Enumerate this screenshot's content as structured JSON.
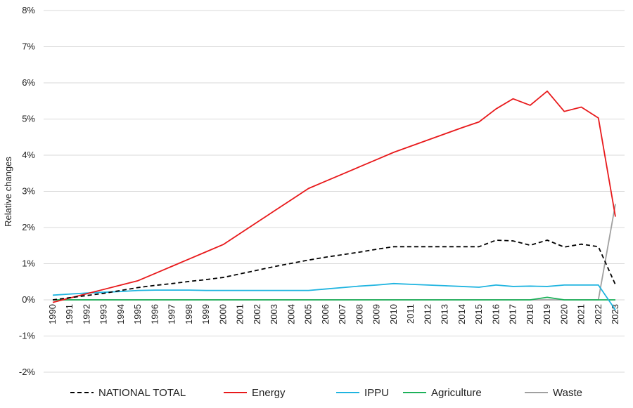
{
  "chart_data": {
    "type": "line",
    "title": "",
    "xlabel": "",
    "ylabel": "Relative changes",
    "ylim": [
      -2,
      8
    ],
    "ytick_values": [
      -2,
      -1,
      0,
      1,
      2,
      3,
      4,
      5,
      6,
      7,
      8
    ],
    "ytick_labels": [
      "-2%",
      "-1%",
      "0%",
      "1%",
      "2%",
      "3%",
      "4%",
      "5%",
      "6%",
      "7%",
      "8%"
    ],
    "grid": "horizontal",
    "legend_position": "bottom",
    "x": [
      "1990",
      "1991",
      "1992",
      "1993",
      "1994",
      "1995",
      "1996",
      "1997",
      "1998",
      "1999",
      "2000",
      "2001",
      "2002",
      "2003",
      "2004",
      "2005",
      "2006",
      "2007",
      "2008",
      "2009",
      "2010",
      "2011",
      "2012",
      "2013",
      "2014",
      "2015",
      "2016",
      "2017",
      "2018",
      "2019",
      "2020",
      "2021",
      "2022",
      "2023"
    ],
    "series": [
      {
        "name": "NATIONAL TOTAL",
        "color": "#000000",
        "dash": "dashed",
        "values": [
          0.0,
          0.06,
          0.12,
          0.18,
          0.26,
          0.34,
          0.4,
          0.45,
          0.51,
          0.56,
          0.62,
          0.72,
          0.82,
          0.92,
          1.01,
          1.1,
          1.18,
          1.25,
          1.32,
          1.4,
          1.47,
          1.47,
          1.47,
          1.47,
          1.47,
          1.47,
          1.65,
          1.63,
          1.51,
          1.65,
          1.46,
          1.54,
          1.47,
          0.42
        ]
      },
      {
        "name": "Energy",
        "color": "#e8191b",
        "dash": "solid",
        "values": [
          -0.07,
          0.05,
          0.17,
          0.29,
          0.41,
          0.53,
          0.73,
          0.93,
          1.13,
          1.33,
          1.53,
          1.84,
          2.15,
          2.46,
          2.77,
          3.08,
          3.28,
          3.48,
          3.68,
          3.88,
          4.08,
          4.25,
          4.42,
          4.59,
          4.76,
          4.92,
          5.28,
          5.56,
          5.38,
          5.77,
          5.21,
          5.33,
          5.03,
          2.3
        ]
      },
      {
        "name": "IPPU",
        "color": "#1fb4e0",
        "dash": "solid",
        "values": [
          0.13,
          0.16,
          0.19,
          0.21,
          0.23,
          0.26,
          0.27,
          0.27,
          0.27,
          0.26,
          0.26,
          0.26,
          0.26,
          0.26,
          0.26,
          0.26,
          0.3,
          0.34,
          0.38,
          0.41,
          0.45,
          0.43,
          0.41,
          0.39,
          0.37,
          0.35,
          0.41,
          0.37,
          0.38,
          0.37,
          0.41,
          0.41,
          0.41,
          -0.28
        ]
      },
      {
        "name": "Agriculture",
        "color": "#1db15a",
        "dash": "solid",
        "values": [
          0,
          0,
          0,
          0,
          0,
          0,
          0,
          0,
          0,
          0,
          0,
          0,
          0,
          0,
          0,
          0,
          0,
          0,
          0,
          0,
          0,
          0,
          0,
          0,
          0,
          0,
          0,
          0,
          0,
          0.07,
          0,
          0,
          0,
          0
        ]
      },
      {
        "name": "Waste",
        "color": "#a0a0a0",
        "dash": "solid",
        "values": [
          0,
          0,
          0,
          0,
          0,
          0,
          0,
          0,
          0,
          0,
          0,
          0,
          0,
          0,
          0,
          0,
          0,
          0,
          0,
          0,
          0,
          0,
          0,
          0,
          0,
          0,
          0,
          0,
          0,
          0,
          0,
          0,
          0,
          2.65
        ]
      }
    ]
  }
}
